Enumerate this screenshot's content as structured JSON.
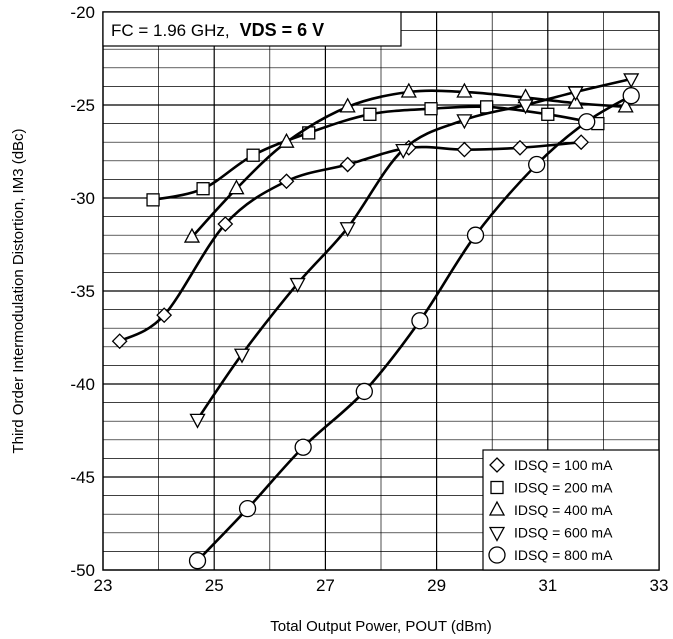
{
  "chart_data": {
    "type": "line",
    "xlabel": "Total Output Power, POUT (dBm)",
    "ylabel": "Third Order Intermodulation Distortion, IM3 (dBc)",
    "xlim": [
      23,
      33
    ],
    "ylim": [
      -50,
      -20
    ],
    "x_ticks": [
      "23",
      "25",
      "27",
      "29",
      "31",
      "33"
    ],
    "y_ticks": [
      "-20",
      "-25",
      "-30",
      "-35",
      "-40",
      "-45",
      "-50"
    ],
    "grid": true,
    "legend_position": "bottom-right",
    "annotation": {
      "fc": "FC = 1.96 GHz,",
      "vds": "VDS = 6 V"
    },
    "series": [
      {
        "name": "IDSQ = 100 mA",
        "marker": "diamond",
        "x": [
          23.3,
          24.1,
          25.2,
          26.3,
          27.4,
          28.5,
          29.5,
          30.5,
          31.6
        ],
        "y": [
          -37.7,
          -36.3,
          -31.4,
          -29.1,
          -28.2,
          -27.3,
          -27.4,
          -27.3,
          -27.0
        ]
      },
      {
        "name": "IDSQ = 200 mA",
        "marker": "square",
        "x": [
          23.9,
          24.8,
          25.7,
          26.7,
          27.8,
          28.9,
          29.9,
          31.0,
          31.9
        ],
        "y": [
          -30.1,
          -29.5,
          -27.7,
          -26.5,
          -25.5,
          -25.2,
          -25.1,
          -25.5,
          -26.0
        ]
      },
      {
        "name": "IDSQ = 400 mA",
        "marker": "triangle-up",
        "x": [
          24.6,
          25.4,
          26.3,
          27.4,
          28.5,
          29.5,
          30.6,
          31.5,
          32.4
        ],
        "y": [
          -32.1,
          -29.5,
          -27.0,
          -25.1,
          -24.3,
          -24.3,
          -24.6,
          -24.9,
          -25.1
        ]
      },
      {
        "name": "IDSQ = 600 mA",
        "marker": "triangle-down",
        "x": [
          24.7,
          25.5,
          26.5,
          27.4,
          28.4,
          29.5,
          30.6,
          31.5,
          32.5
        ],
        "y": [
          -41.9,
          -38.4,
          -34.6,
          -31.6,
          -27.4,
          -25.8,
          -25.0,
          -24.3,
          -23.6
        ]
      },
      {
        "name": "IDSQ = 800 mA",
        "marker": "circle",
        "x": [
          24.7,
          25.6,
          26.6,
          27.7,
          28.7,
          29.7,
          30.8,
          31.7,
          32.5
        ],
        "y": [
          -49.5,
          -46.7,
          -43.4,
          -40.4,
          -36.6,
          -32.0,
          -28.2,
          -25.9,
          -24.5
        ]
      }
    ]
  }
}
